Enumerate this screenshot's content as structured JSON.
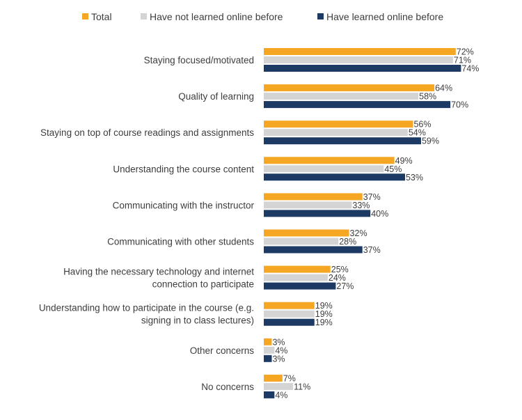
{
  "chart_data": {
    "type": "bar",
    "orientation": "horizontal",
    "categories": [
      [
        "Staying focused/motivated"
      ],
      [
        "Quality of learning"
      ],
      [
        "Staying on top of course readings and assignments"
      ],
      [
        "Understanding the course content"
      ],
      [
        "Communicating with the instructor"
      ],
      [
        "Communicating with other students"
      ],
      [
        "Having the necessary technology and internet",
        "connection to participate"
      ],
      [
        "Understanding how to participate in the course (e.g.",
        "signing in to class lectures)"
      ],
      [
        "Other concerns"
      ],
      [
        "No concerns"
      ]
    ],
    "series": [
      {
        "name": "Total",
        "color": "#f5a623",
        "values": [
          72,
          64,
          56,
          49,
          37,
          32,
          25,
          19,
          3,
          7
        ]
      },
      {
        "name": "Have not learned online before",
        "color": "#d4d4d4",
        "values": [
          71,
          58,
          54,
          45,
          33,
          28,
          24,
          19,
          4,
          11
        ]
      },
      {
        "name": "Have learned online before",
        "color": "#1c3a64",
        "values": [
          74,
          70,
          59,
          53,
          40,
          37,
          27,
          19,
          3,
          4
        ]
      }
    ],
    "value_suffix": "%",
    "xlim": [
      0,
      100
    ],
    "legend_position": "top",
    "grid": false,
    "title": "",
    "xlabel": "",
    "ylabel": ""
  }
}
